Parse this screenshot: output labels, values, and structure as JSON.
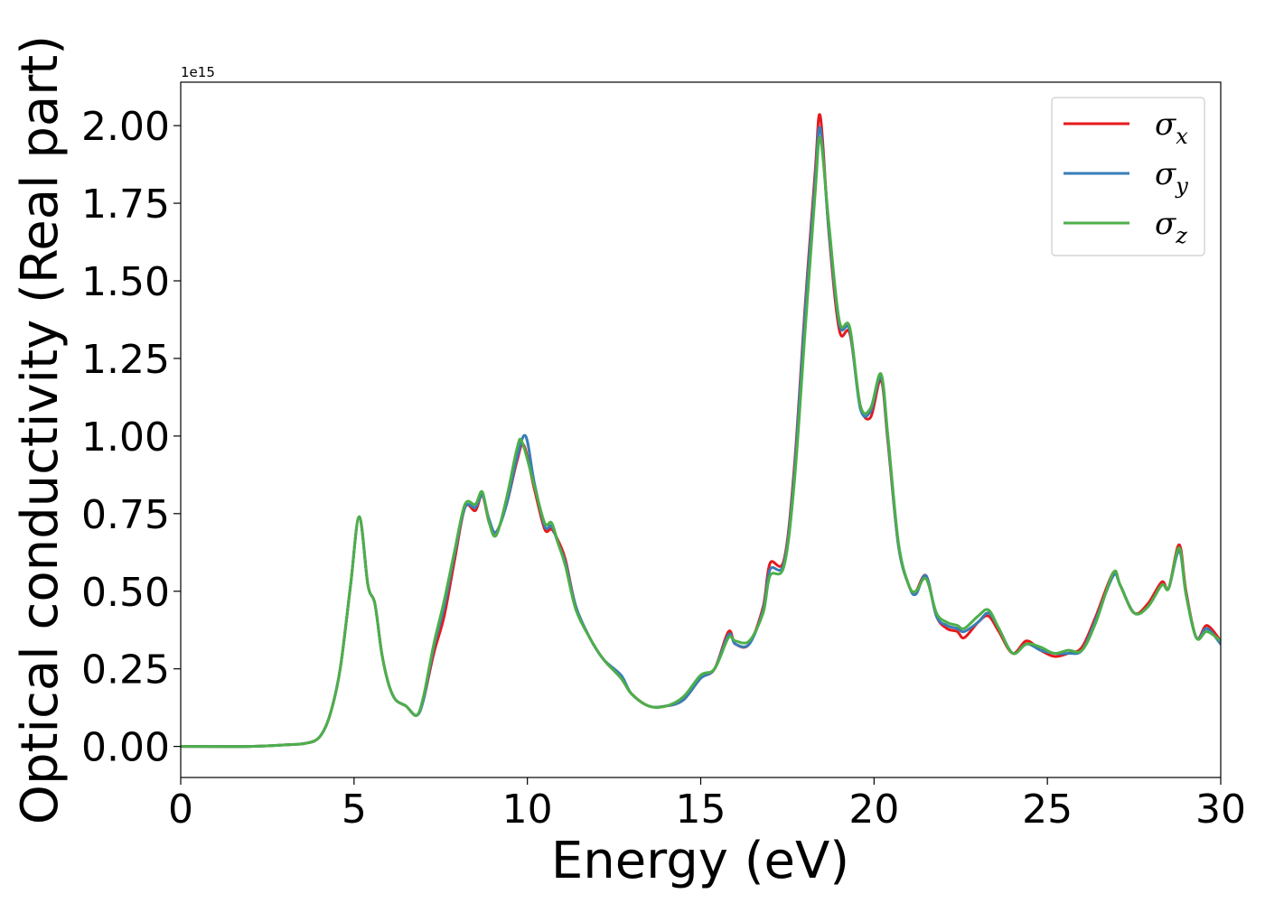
{
  "chart_data": {
    "type": "line",
    "xlabel": "Energy (eV)",
    "ylabel": "Optical conductivity (Real part)",
    "offset_text": "1e15",
    "xlim": [
      0,
      30
    ],
    "ylim": [
      -0.1,
      2.14
    ],
    "x_ticks": [
      0,
      5,
      10,
      15,
      20,
      25,
      30
    ],
    "x_tick_labels": [
      "0",
      "5",
      "10",
      "15",
      "20",
      "25",
      "30"
    ],
    "y_ticks": [
      0.0,
      0.25,
      0.5,
      0.75,
      1.0,
      1.25,
      1.5,
      1.75,
      2.0
    ],
    "y_tick_labels": [
      "0.00",
      "0.25",
      "0.50",
      "0.75",
      "1.00",
      "1.25",
      "1.50",
      "1.75",
      "2.00"
    ],
    "grid": false,
    "legend_position": "top-right",
    "series": [
      {
        "name": "σx",
        "legend_base": "σ",
        "legend_sub": "x",
        "color": "#e41a1c",
        "points": [
          [
            0,
            0.0
          ],
          [
            2,
            0.0
          ],
          [
            3,
            0.005
          ],
          [
            3.6,
            0.01
          ],
          [
            4.0,
            0.03
          ],
          [
            4.3,
            0.1
          ],
          [
            4.6,
            0.25
          ],
          [
            4.9,
            0.52
          ],
          [
            5.15,
            0.74
          ],
          [
            5.4,
            0.52
          ],
          [
            5.6,
            0.46
          ],
          [
            5.8,
            0.3
          ],
          [
            6.0,
            0.2
          ],
          [
            6.2,
            0.15
          ],
          [
            6.5,
            0.13
          ],
          [
            6.8,
            0.1
          ],
          [
            7.0,
            0.15
          ],
          [
            7.3,
            0.3
          ],
          [
            7.6,
            0.42
          ],
          [
            7.9,
            0.6
          ],
          [
            8.2,
            0.77
          ],
          [
            8.5,
            0.76
          ],
          [
            8.7,
            0.81
          ],
          [
            8.9,
            0.72
          ],
          [
            9.1,
            0.69
          ],
          [
            9.4,
            0.78
          ],
          [
            9.7,
            0.92
          ],
          [
            9.9,
            0.97
          ],
          [
            10.2,
            0.83
          ],
          [
            10.5,
            0.7
          ],
          [
            10.7,
            0.7
          ],
          [
            10.9,
            0.66
          ],
          [
            11.1,
            0.6
          ],
          [
            11.4,
            0.45
          ],
          [
            11.8,
            0.35
          ],
          [
            12.2,
            0.28
          ],
          [
            12.7,
            0.22
          ],
          [
            13.0,
            0.17
          ],
          [
            13.5,
            0.13
          ],
          [
            14.0,
            0.13
          ],
          [
            14.5,
            0.15
          ],
          [
            15.0,
            0.22
          ],
          [
            15.4,
            0.25
          ],
          [
            15.8,
            0.37
          ],
          [
            16.0,
            0.33
          ],
          [
            16.4,
            0.33
          ],
          [
            16.8,
            0.45
          ],
          [
            17.0,
            0.59
          ],
          [
            17.4,
            0.6
          ],
          [
            17.7,
            0.9
          ],
          [
            18.0,
            1.4
          ],
          [
            18.3,
            1.85
          ],
          [
            18.45,
            2.03
          ],
          [
            18.7,
            1.65
          ],
          [
            19.0,
            1.34
          ],
          [
            19.3,
            1.33
          ],
          [
            19.6,
            1.1
          ],
          [
            19.9,
            1.06
          ],
          [
            20.2,
            1.18
          ],
          [
            20.4,
            0.98
          ],
          [
            20.7,
            0.65
          ],
          [
            21.0,
            0.52
          ],
          [
            21.2,
            0.5
          ],
          [
            21.5,
            0.55
          ],
          [
            21.8,
            0.42
          ],
          [
            22.1,
            0.38
          ],
          [
            22.4,
            0.37
          ],
          [
            22.6,
            0.35
          ],
          [
            23.0,
            0.4
          ],
          [
            23.3,
            0.42
          ],
          [
            23.6,
            0.37
          ],
          [
            24.0,
            0.3
          ],
          [
            24.4,
            0.34
          ],
          [
            24.8,
            0.31
          ],
          [
            25.2,
            0.29
          ],
          [
            25.6,
            0.3
          ],
          [
            26.0,
            0.32
          ],
          [
            26.4,
            0.42
          ],
          [
            26.9,
            0.56
          ],
          [
            27.1,
            0.52
          ],
          [
            27.5,
            0.43
          ],
          [
            27.9,
            0.46
          ],
          [
            28.3,
            0.53
          ],
          [
            28.5,
            0.51
          ],
          [
            28.8,
            0.65
          ],
          [
            29.0,
            0.5
          ],
          [
            29.3,
            0.35
          ],
          [
            29.6,
            0.39
          ],
          [
            30.0,
            0.34
          ]
        ]
      },
      {
        "name": "σy",
        "legend_base": "σ",
        "legend_sub": "y",
        "color": "#377eb8",
        "points": [
          [
            0,
            0.0
          ],
          [
            2,
            0.0
          ],
          [
            3,
            0.005
          ],
          [
            3.6,
            0.01
          ],
          [
            4.0,
            0.03
          ],
          [
            4.3,
            0.1
          ],
          [
            4.6,
            0.25
          ],
          [
            4.9,
            0.52
          ],
          [
            5.15,
            0.74
          ],
          [
            5.4,
            0.52
          ],
          [
            5.6,
            0.46
          ],
          [
            5.8,
            0.3
          ],
          [
            6.0,
            0.2
          ],
          [
            6.2,
            0.15
          ],
          [
            6.5,
            0.13
          ],
          [
            6.8,
            0.1
          ],
          [
            7.0,
            0.15
          ],
          [
            7.3,
            0.32
          ],
          [
            7.6,
            0.45
          ],
          [
            7.9,
            0.62
          ],
          [
            8.2,
            0.77
          ],
          [
            8.5,
            0.77
          ],
          [
            8.7,
            0.81
          ],
          [
            8.9,
            0.73
          ],
          [
            9.1,
            0.69
          ],
          [
            9.4,
            0.78
          ],
          [
            9.7,
            0.93
          ],
          [
            9.95,
            1.0
          ],
          [
            10.2,
            0.85
          ],
          [
            10.5,
            0.71
          ],
          [
            10.7,
            0.71
          ],
          [
            10.9,
            0.65
          ],
          [
            11.1,
            0.59
          ],
          [
            11.4,
            0.45
          ],
          [
            11.8,
            0.35
          ],
          [
            12.2,
            0.28
          ],
          [
            12.7,
            0.23
          ],
          [
            13.0,
            0.17
          ],
          [
            13.5,
            0.13
          ],
          [
            14.0,
            0.13
          ],
          [
            14.5,
            0.15
          ],
          [
            15.0,
            0.22
          ],
          [
            15.4,
            0.25
          ],
          [
            15.8,
            0.36
          ],
          [
            16.0,
            0.33
          ],
          [
            16.4,
            0.33
          ],
          [
            16.8,
            0.44
          ],
          [
            17.0,
            0.57
          ],
          [
            17.4,
            0.59
          ],
          [
            17.7,
            0.88
          ],
          [
            18.0,
            1.38
          ],
          [
            18.3,
            1.82
          ],
          [
            18.45,
            1.99
          ],
          [
            18.7,
            1.66
          ],
          [
            19.0,
            1.36
          ],
          [
            19.3,
            1.34
          ],
          [
            19.6,
            1.09
          ],
          [
            19.9,
            1.08
          ],
          [
            20.2,
            1.19
          ],
          [
            20.4,
            0.99
          ],
          [
            20.7,
            0.65
          ],
          [
            21.0,
            0.52
          ],
          [
            21.2,
            0.49
          ],
          [
            21.5,
            0.55
          ],
          [
            21.8,
            0.42
          ],
          [
            22.1,
            0.39
          ],
          [
            22.4,
            0.38
          ],
          [
            22.6,
            0.37
          ],
          [
            23.0,
            0.4
          ],
          [
            23.3,
            0.43
          ],
          [
            23.6,
            0.38
          ],
          [
            24.0,
            0.3
          ],
          [
            24.4,
            0.33
          ],
          [
            24.8,
            0.31
          ],
          [
            25.2,
            0.3
          ],
          [
            25.6,
            0.3
          ],
          [
            26.0,
            0.31
          ],
          [
            26.4,
            0.41
          ],
          [
            26.9,
            0.55
          ],
          [
            27.1,
            0.52
          ],
          [
            27.5,
            0.43
          ],
          [
            27.9,
            0.45
          ],
          [
            28.3,
            0.52
          ],
          [
            28.5,
            0.51
          ],
          [
            28.8,
            0.63
          ],
          [
            29.0,
            0.49
          ],
          [
            29.3,
            0.35
          ],
          [
            29.6,
            0.38
          ],
          [
            30.0,
            0.33
          ]
        ]
      },
      {
        "name": "σz",
        "legend_base": "σ",
        "legend_sub": "z",
        "color": "#4daf4a",
        "points": [
          [
            0,
            0.0
          ],
          [
            2,
            0.0
          ],
          [
            3,
            0.005
          ],
          [
            3.6,
            0.01
          ],
          [
            4.0,
            0.03
          ],
          [
            4.3,
            0.1
          ],
          [
            4.6,
            0.25
          ],
          [
            4.9,
            0.52
          ],
          [
            5.15,
            0.74
          ],
          [
            5.4,
            0.52
          ],
          [
            5.6,
            0.46
          ],
          [
            5.8,
            0.3
          ],
          [
            6.0,
            0.2
          ],
          [
            6.2,
            0.15
          ],
          [
            6.5,
            0.13
          ],
          [
            6.8,
            0.1
          ],
          [
            7.0,
            0.16
          ],
          [
            7.3,
            0.33
          ],
          [
            7.6,
            0.47
          ],
          [
            7.9,
            0.63
          ],
          [
            8.2,
            0.78
          ],
          [
            8.5,
            0.78
          ],
          [
            8.7,
            0.82
          ],
          [
            8.9,
            0.72
          ],
          [
            9.1,
            0.68
          ],
          [
            9.4,
            0.8
          ],
          [
            9.7,
            0.96
          ],
          [
            9.85,
            0.98
          ],
          [
            10.2,
            0.84
          ],
          [
            10.5,
            0.72
          ],
          [
            10.7,
            0.72
          ],
          [
            10.9,
            0.65
          ],
          [
            11.1,
            0.58
          ],
          [
            11.4,
            0.44
          ],
          [
            11.8,
            0.35
          ],
          [
            12.2,
            0.28
          ],
          [
            12.7,
            0.22
          ],
          [
            13.0,
            0.17
          ],
          [
            13.5,
            0.13
          ],
          [
            14.0,
            0.13
          ],
          [
            14.5,
            0.16
          ],
          [
            15.0,
            0.23
          ],
          [
            15.4,
            0.25
          ],
          [
            15.8,
            0.35
          ],
          [
            16.0,
            0.34
          ],
          [
            16.4,
            0.34
          ],
          [
            16.8,
            0.43
          ],
          [
            17.0,
            0.55
          ],
          [
            17.4,
            0.58
          ],
          [
            17.7,
            0.85
          ],
          [
            18.0,
            1.32
          ],
          [
            18.3,
            1.78
          ],
          [
            18.45,
            1.96
          ],
          [
            18.7,
            1.68
          ],
          [
            19.0,
            1.37
          ],
          [
            19.3,
            1.35
          ],
          [
            19.6,
            1.1
          ],
          [
            19.9,
            1.09
          ],
          [
            20.2,
            1.2
          ],
          [
            20.4,
            1.0
          ],
          [
            20.7,
            0.66
          ],
          [
            21.0,
            0.52
          ],
          [
            21.2,
            0.5
          ],
          [
            21.5,
            0.54
          ],
          [
            21.8,
            0.43
          ],
          [
            22.1,
            0.4
          ],
          [
            22.4,
            0.39
          ],
          [
            22.6,
            0.38
          ],
          [
            23.0,
            0.42
          ],
          [
            23.3,
            0.44
          ],
          [
            23.6,
            0.38
          ],
          [
            24.0,
            0.3
          ],
          [
            24.4,
            0.33
          ],
          [
            24.8,
            0.32
          ],
          [
            25.2,
            0.3
          ],
          [
            25.6,
            0.31
          ],
          [
            26.0,
            0.31
          ],
          [
            26.4,
            0.4
          ],
          [
            26.9,
            0.56
          ],
          [
            27.1,
            0.52
          ],
          [
            27.5,
            0.43
          ],
          [
            27.9,
            0.45
          ],
          [
            28.3,
            0.52
          ],
          [
            28.5,
            0.51
          ],
          [
            28.8,
            0.64
          ],
          [
            29.0,
            0.49
          ],
          [
            29.3,
            0.35
          ],
          [
            29.6,
            0.37
          ],
          [
            30.0,
            0.34
          ]
        ]
      }
    ]
  }
}
